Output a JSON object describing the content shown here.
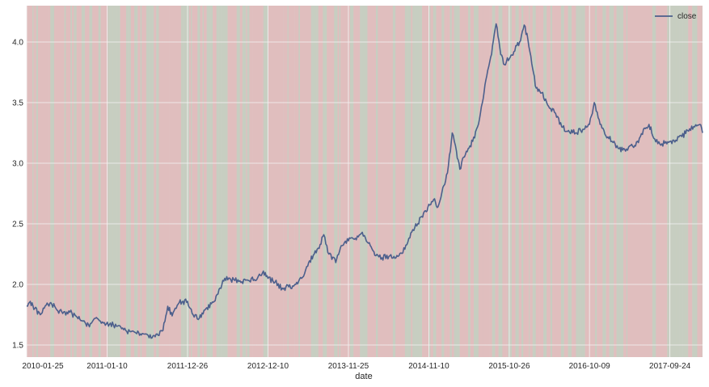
{
  "chart_data": {
    "type": "line",
    "title": "",
    "xlabel": "date",
    "ylabel": "",
    "x_tick_labels": [
      "2010-01-25",
      "2011-01-10",
      "2011-12-26",
      "2012-12-10",
      "2013-11-25",
      "2014-11-10",
      "2015-10-26",
      "2016-10-09",
      "2017-09-24"
    ],
    "y_ticks": [
      1.5,
      2.0,
      2.5,
      3.0,
      3.5,
      4.0
    ],
    "y_tick_labels": [
      "1.5",
      "2.0",
      "2.5",
      "3.0",
      "3.5",
      "4.0"
    ],
    "xlim": [
      "2010-01-25",
      "2018-02-13"
    ],
    "ylim": [
      1.4,
      4.3
    ],
    "grid": true,
    "legend_position": "top-right",
    "background_bands": "alternating red and green vertical bands",
    "colors": {
      "line": "#4c5f8c",
      "band_red": "#e7b7b7",
      "band_green": "#b9d3bb",
      "grid": "#f4f4f4",
      "axes_bg": "#d8c8c8"
    },
    "series": [
      {
        "name": "close",
        "points": [
          [
            "2010-01-25",
            1.82
          ],
          [
            "2010-02-10",
            1.86
          ],
          [
            "2010-03-01",
            1.8
          ],
          [
            "2010-03-25",
            1.75
          ],
          [
            "2010-04-20",
            1.83
          ],
          [
            "2010-05-10",
            1.85
          ],
          [
            "2010-06-05",
            1.79
          ],
          [
            "2010-07-01",
            1.76
          ],
          [
            "2010-08-01",
            1.77
          ],
          [
            "2010-09-01",
            1.73
          ],
          [
            "2010-10-01",
            1.7
          ],
          [
            "2010-10-25",
            1.65
          ],
          [
            "2010-11-20",
            1.72
          ],
          [
            "2010-12-20",
            1.69
          ],
          [
            "2011-01-20",
            1.67
          ],
          [
            "2011-03-01",
            1.66
          ],
          [
            "2011-04-01",
            1.62
          ],
          [
            "2011-05-15",
            1.6
          ],
          [
            "2011-06-20",
            1.59
          ],
          [
            "2011-07-25",
            1.56
          ],
          [
            "2011-08-20",
            1.58
          ],
          [
            "2011-09-10",
            1.62
          ],
          [
            "2011-10-01",
            1.82
          ],
          [
            "2011-10-20",
            1.74
          ],
          [
            "2011-11-20",
            1.85
          ],
          [
            "2011-12-26",
            1.86
          ],
          [
            "2012-01-15",
            1.76
          ],
          [
            "2012-02-15",
            1.72
          ],
          [
            "2012-03-15",
            1.8
          ],
          [
            "2012-04-20",
            1.86
          ],
          [
            "2012-05-15",
            1.97
          ],
          [
            "2012-06-05",
            2.05
          ],
          [
            "2012-07-01",
            2.04
          ],
          [
            "2012-08-10",
            2.03
          ],
          [
            "2012-09-20",
            2.03
          ],
          [
            "2012-10-25",
            2.05
          ],
          [
            "2012-11-20",
            2.11
          ],
          [
            "2012-12-10",
            2.05
          ],
          [
            "2013-01-10",
            2.02
          ],
          [
            "2013-02-10",
            1.97
          ],
          [
            "2013-03-10",
            1.98
          ],
          [
            "2013-04-10",
            2.0
          ],
          [
            "2013-05-05",
            2.05
          ],
          [
            "2013-06-01",
            2.15
          ],
          [
            "2013-06-25",
            2.24
          ],
          [
            "2013-07-25",
            2.33
          ],
          [
            "2013-08-10",
            2.41
          ],
          [
            "2013-09-01",
            2.25
          ],
          [
            "2013-10-01",
            2.18
          ],
          [
            "2013-10-25",
            2.32
          ],
          [
            "2013-11-25",
            2.36
          ],
          [
            "2013-12-25",
            2.38
          ],
          [
            "2014-01-20",
            2.42
          ],
          [
            "2014-02-20",
            2.34
          ],
          [
            "2014-03-20",
            2.24
          ],
          [
            "2014-04-20",
            2.22
          ],
          [
            "2014-05-20",
            2.23
          ],
          [
            "2014-06-20",
            2.22
          ],
          [
            "2014-07-20",
            2.26
          ],
          [
            "2014-08-15",
            2.38
          ],
          [
            "2014-09-10",
            2.47
          ],
          [
            "2014-10-10",
            2.56
          ],
          [
            "2014-10-30",
            2.6
          ],
          [
            "2014-11-10",
            2.66
          ],
          [
            "2014-12-01",
            2.7
          ],
          [
            "2014-12-20",
            2.64
          ],
          [
            "2015-01-10",
            2.8
          ],
          [
            "2015-01-30",
            2.92
          ],
          [
            "2015-02-20",
            3.25
          ],
          [
            "2015-03-10",
            3.1
          ],
          [
            "2015-03-25",
            2.95
          ],
          [
            "2015-04-10",
            3.05
          ],
          [
            "2015-04-30",
            3.12
          ],
          [
            "2015-05-20",
            3.18
          ],
          [
            "2015-06-10",
            3.3
          ],
          [
            "2015-07-01",
            3.5
          ],
          [
            "2015-07-20",
            3.72
          ],
          [
            "2015-08-10",
            3.9
          ],
          [
            "2015-08-30",
            4.15
          ],
          [
            "2015-09-15",
            3.95
          ],
          [
            "2015-10-01",
            3.82
          ],
          [
            "2015-10-26",
            3.86
          ],
          [
            "2015-11-15",
            3.92
          ],
          [
            "2015-12-10",
            4.0
          ],
          [
            "2015-12-30",
            4.14
          ],
          [
            "2016-01-15",
            4.02
          ],
          [
            "2016-02-01",
            3.82
          ],
          [
            "2016-02-20",
            3.62
          ],
          [
            "2016-03-15",
            3.58
          ],
          [
            "2016-04-10",
            3.48
          ],
          [
            "2016-05-10",
            3.42
          ],
          [
            "2016-06-10",
            3.3
          ],
          [
            "2016-07-10",
            3.27
          ],
          [
            "2016-08-10",
            3.25
          ],
          [
            "2016-09-10",
            3.28
          ],
          [
            "2016-10-09",
            3.32
          ],
          [
            "2016-10-30",
            3.5
          ],
          [
            "2016-11-20",
            3.36
          ],
          [
            "2016-12-15",
            3.24
          ],
          [
            "2017-01-15",
            3.18
          ],
          [
            "2017-02-15",
            3.12
          ],
          [
            "2017-03-15",
            3.1
          ],
          [
            "2017-04-15",
            3.14
          ],
          [
            "2017-05-10",
            3.17
          ],
          [
            "2017-06-01",
            3.28
          ],
          [
            "2017-06-25",
            3.32
          ],
          [
            "2017-07-20",
            3.2
          ],
          [
            "2017-08-20",
            3.16
          ],
          [
            "2017-09-24",
            3.18
          ],
          [
            "2017-10-20",
            3.19
          ],
          [
            "2017-11-15",
            3.22
          ],
          [
            "2017-12-10",
            3.27
          ],
          [
            "2018-01-10",
            3.3
          ],
          [
            "2018-02-01",
            3.32
          ],
          [
            "2018-02-13",
            3.25
          ]
        ]
      }
    ]
  }
}
